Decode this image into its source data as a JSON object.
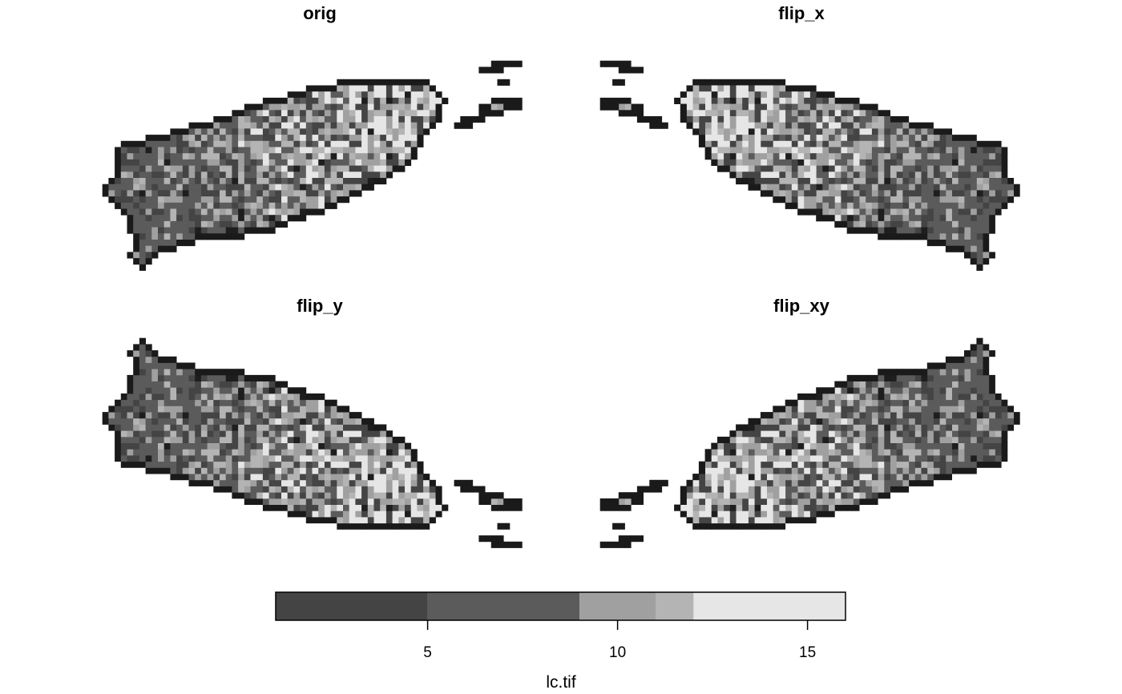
{
  "chart_data": {
    "type": "heatmap",
    "panels": [
      {
        "name": "orig",
        "flip_x": false,
        "flip_y": false
      },
      {
        "name": "flip_x",
        "flip_x": true,
        "flip_y": false
      },
      {
        "name": "flip_y",
        "flip_x": false,
        "flip_y": true
      },
      {
        "name": "flip_xy",
        "flip_x": true,
        "flip_y": true
      }
    ],
    "legend": {
      "title": "lc.tif",
      "range": [
        1,
        16
      ],
      "ticks": [
        5,
        10,
        15
      ],
      "tick_labels": [
        "5",
        "10",
        "15"
      ],
      "breaks": [
        {
          "from": 1,
          "to": 5,
          "color": "#444444"
        },
        {
          "from": 5,
          "to": 9,
          "color": "#5b5b5b"
        },
        {
          "from": 9,
          "to": 11,
          "color": "#a0a0a0"
        },
        {
          "from": 11,
          "to": 12,
          "color": "#b4b4b4"
        },
        {
          "from": 12,
          "to": 16,
          "color": "#e6e6e6"
        }
      ],
      "position": "bottom"
    },
    "colors": {
      "boundary": "#1a1a1a",
      "background": "#ffffff"
    }
  }
}
